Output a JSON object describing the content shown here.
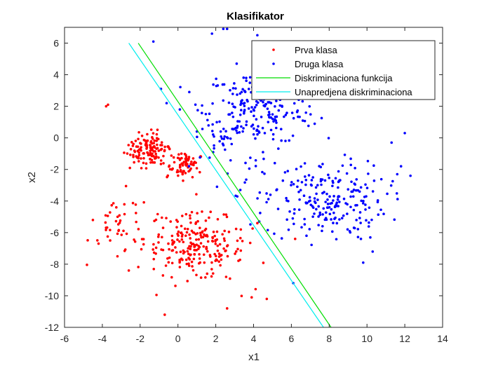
{
  "chart_data": {
    "type": "scatter",
    "title": "Klasifikator",
    "xlabel": "x1",
    "ylabel": "x2",
    "xlim": [
      -6,
      14
    ],
    "ylim": [
      -12,
      7
    ],
    "xticks": [
      -6,
      -4,
      -2,
      0,
      2,
      4,
      6,
      8,
      10,
      12,
      14
    ],
    "yticks": [
      -12,
      -10,
      -8,
      -6,
      -4,
      -2,
      0,
      2,
      4,
      6
    ],
    "grid": false,
    "legend_position": "top-right",
    "series": [
      {
        "name": "Prva klasa",
        "kind": "points",
        "color": "#ff0000",
        "clusters": [
          {
            "center": [
              -1.6,
              -0.8
            ],
            "sd": [
              0.5,
              0.55
            ],
            "n": 120,
            "rot": -0.6
          },
          {
            "center": [
              0.3,
              -1.6
            ],
            "sd": [
              0.45,
              0.5
            ],
            "n": 70,
            "rot": -0.4
          },
          {
            "center": [
              0.9,
              -6.9
            ],
            "sd": [
              1.35,
              1.0
            ],
            "n": 230,
            "rot": -0.2
          },
          {
            "center": [
              -3.0,
              -5.5
            ],
            "sd": [
              0.8,
              1.0
            ],
            "n": 40,
            "rot": 0.0
          }
        ],
        "points": [
          [
            -4.5,
            -5.2
          ],
          [
            -4.2,
            -6.7
          ],
          [
            -3.8,
            2.0
          ],
          [
            -3.7,
            2.1
          ],
          [
            -0.7,
            -11.2
          ],
          [
            2.6,
            -10.8
          ],
          [
            4.2,
            -5.4
          ],
          [
            6.2,
            -6.4
          ],
          [
            4.7,
            -10.2
          ],
          [
            3.9,
            -10.1
          ],
          [
            -2.6,
            -8.4
          ],
          [
            -3.2,
            -7.5
          ]
        ]
      },
      {
        "name": "Druga klasa",
        "kind": "points",
        "color": "#0000ff",
        "clusters": [
          {
            "center": [
              4.4,
              2.0
            ],
            "sd": [
              1.5,
              1.2
            ],
            "n": 210,
            "rot": 0.0
          },
          {
            "center": [
              7.8,
              -4.0
            ],
            "sd": [
              1.6,
              1.25
            ],
            "n": 220,
            "rot": 0.0
          },
          {
            "center": [
              2.6,
              0.0
            ],
            "sd": [
              0.9,
              1.4
            ],
            "n": 45,
            "rot": 0.0
          }
        ],
        "points": [
          [
            -1.3,
            6.1
          ],
          [
            1.8,
            6.6
          ],
          [
            2.4,
            6.9
          ],
          [
            2.6,
            6.9
          ],
          [
            4.2,
            6.5
          ],
          [
            0.6,
            2.9
          ],
          [
            -0.9,
            3.1
          ],
          [
            -0.6,
            2.2
          ],
          [
            0.1,
            1.8
          ],
          [
            1.0,
            0.4
          ],
          [
            12.3,
            -2.4
          ],
          [
            11.8,
            -1.8
          ],
          [
            12.0,
            0.3
          ],
          [
            11.3,
            -0.3
          ],
          [
            11.6,
            -2.3
          ],
          [
            9.8,
            -7.9
          ],
          [
            10.3,
            -7.2
          ],
          [
            6.1,
            -9.2
          ],
          [
            5.3,
            -4.5
          ],
          [
            3.3,
            -3.3
          ],
          [
            6.8,
            -6.2
          ],
          [
            4.3,
            -5.3
          ]
        ]
      },
      {
        "name": "Diskriminaciona funkcija",
        "kind": "line",
        "color": "#00dd00",
        "x": [
          -2.1,
          8.1
        ],
        "y": [
          6.0,
          -12.0
        ]
      },
      {
        "name": "Unapredjena diskriminaciona",
        "kind": "line",
        "color": "#00eeee",
        "x": [
          -2.6,
          7.7
        ],
        "y": [
          6.0,
          -12.0
        ]
      }
    ]
  }
}
